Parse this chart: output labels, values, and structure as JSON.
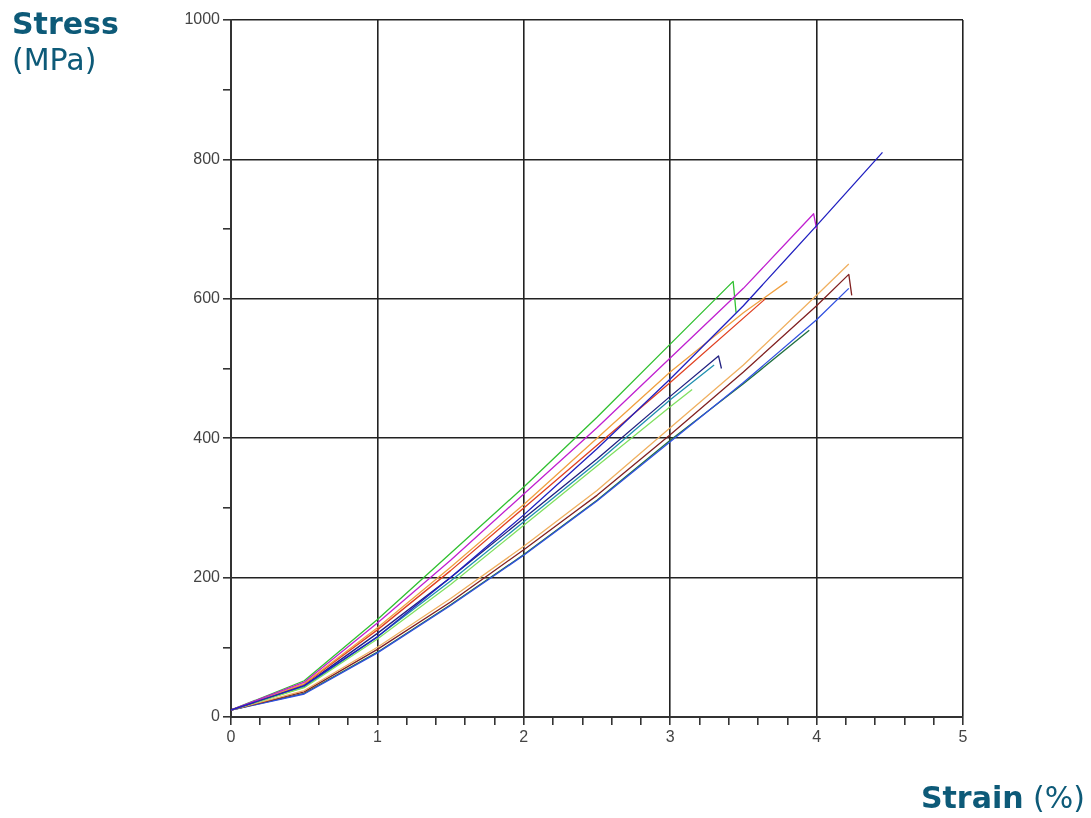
{
  "chart_data": {
    "type": "line",
    "ylabel": "Stress (MPa)",
    "xlabel": "Strain (%)",
    "xlim": [
      0,
      5
    ],
    "ylim": [
      0,
      1000
    ],
    "xticks": [
      0,
      {
        "value": 0.2,
        "label": null
      },
      {
        "value": 0.4,
        "label": null
      },
      {
        "value": 0.6,
        "label": null
      },
      {
        "value": 0.8,
        "label": null
      },
      1,
      {
        "value": 1.2,
        "label": null
      },
      {
        "value": 1.4,
        "label": null
      },
      {
        "value": 1.6,
        "label": null
      },
      {
        "value": 1.8,
        "label": null
      },
      2,
      {
        "value": 2.2,
        "label": null
      },
      {
        "value": 2.4,
        "label": null
      },
      {
        "value": 2.6,
        "label": null
      },
      {
        "value": 2.8,
        "label": null
      },
      3,
      {
        "value": 3.2,
        "label": null
      },
      {
        "value": 3.4,
        "label": null
      },
      {
        "value": 3.6,
        "label": null
      },
      {
        "value": 3.8,
        "label": null
      },
      4,
      {
        "value": 4.2,
        "label": null
      },
      {
        "value": 4.4,
        "label": null
      },
      {
        "value": 4.6,
        "label": null
      },
      {
        "value": 4.8,
        "label": null
      },
      5
    ],
    "yticks": [
      0,
      {
        "value": 100,
        "label": null
      },
      200,
      {
        "value": 300,
        "label": null
      },
      400,
      {
        "value": 500,
        "label": null
      },
      600,
      {
        "value": 700,
        "label": null
      },
      800,
      {
        "value": 900,
        "label": null
      },
      1000
    ],
    "grid": true,
    "legend": false,
    "marker": "none",
    "line_style": "solid",
    "series": [
      {
        "color": "#2020c0",
        "x": [
          0,
          0.5,
          1,
          1.5,
          2,
          2.5,
          3,
          3.5,
          4,
          4.45
        ],
        "values": [
          10,
          45,
          115,
          200,
          290,
          385,
          485,
          590,
          705,
          810
        ]
      },
      {
        "color": "#c020d0",
        "x": [
          0,
          0.5,
          1,
          1.5,
          2,
          2.5,
          3,
          3.5,
          3.98,
          4.0
        ],
        "values": [
          10,
          50,
          135,
          225,
          320,
          415,
          515,
          615,
          722,
          700
        ]
      },
      {
        "color": "#30c030",
        "x": [
          0,
          0.5,
          1,
          1.5,
          2,
          2.5,
          3,
          3.43,
          3.45
        ],
        "values": [
          10,
          52,
          140,
          235,
          330,
          430,
          535,
          625,
          580
        ]
      },
      {
        "color": "#f0a040",
        "x": [
          0,
          0.5,
          1,
          1.5,
          2,
          2.5,
          3,
          3.5,
          3.8
        ],
        "values": [
          10,
          48,
          128,
          215,
          305,
          400,
          495,
          580,
          625
        ]
      },
      {
        "color": "#e04020",
        "x": [
          0,
          0.5,
          1,
          1.5,
          2,
          2.5,
          3,
          3.65
        ],
        "values": [
          10,
          47,
          125,
          210,
          300,
          390,
          480,
          600
        ]
      },
      {
        "color": "#202080",
        "x": [
          0,
          0.5,
          1,
          1.5,
          2,
          2.5,
          3,
          3.33,
          3.35
        ],
        "values": [
          10,
          45,
          120,
          200,
          285,
          370,
          460,
          518,
          500
        ]
      },
      {
        "color": "#80e060",
        "x": [
          0,
          0.5,
          1,
          1.5,
          2,
          2.5,
          3,
          3.15
        ],
        "values": [
          10,
          42,
          112,
          190,
          275,
          360,
          445,
          470
        ]
      },
      {
        "color": "#2090b0",
        "x": [
          0,
          0.5,
          1,
          1.5,
          2,
          2.5,
          3,
          3.3
        ],
        "values": [
          10,
          43,
          115,
          195,
          280,
          365,
          455,
          505
        ]
      },
      {
        "color": "#f0b060",
        "x": [
          0,
          0.5,
          1,
          1.5,
          2,
          2.5,
          3,
          3.5,
          4,
          4.22
        ],
        "values": [
          10,
          38,
          100,
          170,
          245,
          325,
          415,
          505,
          605,
          650
        ]
      },
      {
        "color": "#802020",
        "x": [
          0,
          0.5,
          1,
          1.5,
          2,
          2.5,
          3,
          3.5,
          4,
          4.22,
          4.24
        ],
        "values": [
          10,
          36,
          97,
          165,
          240,
          318,
          405,
          495,
          590,
          635,
          605
        ]
      },
      {
        "color": "#3050e0",
        "x": [
          0,
          0.5,
          1,
          1.5,
          2,
          2.5,
          3,
          3.5,
          4,
          4.22
        ],
        "values": [
          10,
          33,
          92,
          160,
          232,
          310,
          395,
          480,
          570,
          615
        ]
      },
      {
        "color": "#207040",
        "x": [
          0,
          0.5,
          1,
          1.5,
          2,
          2.5,
          3,
          3.5,
          3.95
        ],
        "values": [
          10,
          34,
          93,
          161,
          233,
          311,
          397,
          478,
          555
        ]
      }
    ]
  }
}
